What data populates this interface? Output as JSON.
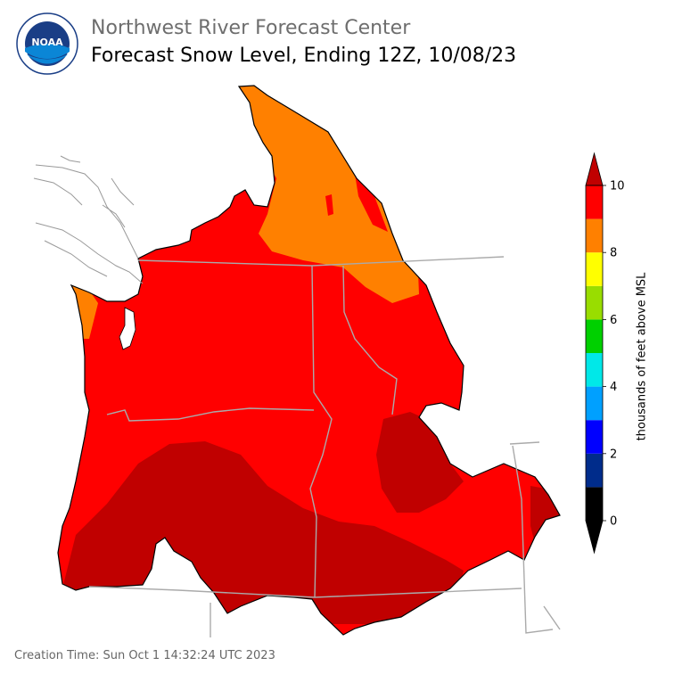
{
  "header": {
    "org": "Northwest River Forecast Center",
    "title": "Forecast Snow Level, Ending 12Z, 10/08/23"
  },
  "logo": {
    "text": "NOAA",
    "ring_text": "NATIONAL OCEANIC AND ATMOSPHERIC ADMINISTRATION · U.S. DEPARTMENT OF COMMERCE"
  },
  "legend": {
    "label": "thousands of feet above MSL",
    "ticks": [
      "0",
      "2",
      "4",
      "6",
      "8",
      "10"
    ],
    "bins": [
      {
        "from": 0,
        "to": 1,
        "color": "#000000"
      },
      {
        "from": 1,
        "to": 2,
        "color": "#002c8b"
      },
      {
        "from": 2,
        "to": 3,
        "color": "#0000ff"
      },
      {
        "from": 3,
        "to": 4,
        "color": "#00a0ff"
      },
      {
        "from": 4,
        "to": 5,
        "color": "#00e8e8"
      },
      {
        "from": 5,
        "to": 6,
        "color": "#00d000"
      },
      {
        "from": 6,
        "to": 7,
        "color": "#99dd00"
      },
      {
        "from": 7,
        "to": 8,
        "color": "#ffff00"
      },
      {
        "from": 8,
        "to": 9,
        "color": "#ff8000"
      },
      {
        "from": 9,
        "to": 10,
        "color": "#ff0000"
      }
    ],
    "under_color": "#000000",
    "over_color": "#c00000"
  },
  "map_colors": {
    "orange_8_9": "#ff8000",
    "red_9_10": "#ff0000",
    "darkred_over_10": "#c00000",
    "state_border": "#aaaaaa",
    "coast": "#999999"
  },
  "footer": {
    "creation": "Creation Time: Sun Oct 1 14:32:24 UTC 2023"
  }
}
